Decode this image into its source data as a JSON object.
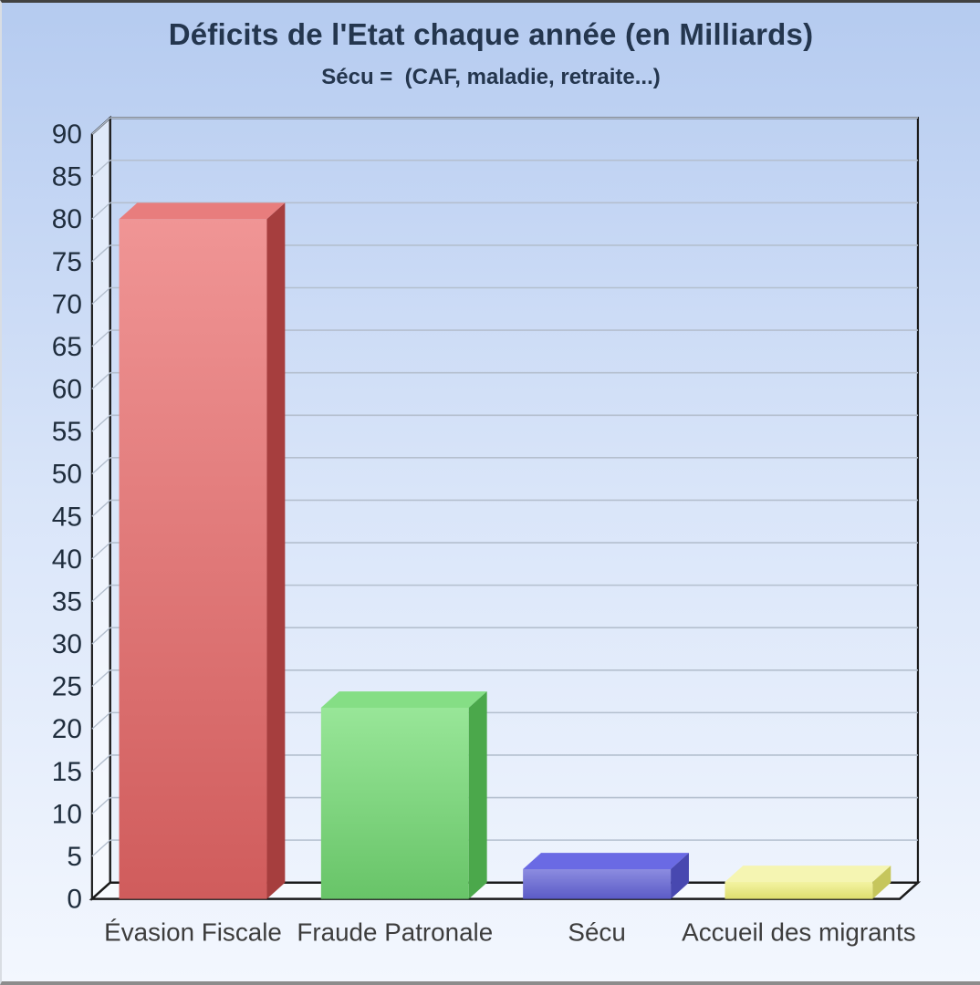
{
  "frame": {
    "border_top": "#414141",
    "border_bottom": "#8c8c8c",
    "border_left": "#d9dde3"
  },
  "background": {
    "top": "#b5cbf0",
    "middle": "#d9e5f9",
    "bottom": "#f3f7fe"
  },
  "chart_data": {
    "type": "bar",
    "projection": "3d",
    "title": "Déficits de l'Etat chaque année (en Milliards)",
    "subtitle": "Sécu =  (CAF, maladie, retraite...)",
    "categories": [
      "Évasion Fiscale",
      "Fraude Patronale",
      "Sécu",
      "Accueil des migrants"
    ],
    "values": [
      80,
      22.5,
      3.5,
      2
    ],
    "ylim": [
      0,
      90
    ],
    "ytick_step": 5,
    "yticks": [
      0,
      5,
      10,
      15,
      20,
      25,
      30,
      35,
      40,
      45,
      50,
      55,
      60,
      65,
      70,
      75,
      80,
      85,
      90
    ],
    "grid": true,
    "legend": false,
    "bar_colors": [
      {
        "name": "red",
        "front_top": "#f09595",
        "front_bottom": "#d05c5c",
        "top": "#e87d7d",
        "side": "#a63e3e"
      },
      {
        "name": "green",
        "front_top": "#98e698",
        "front_bottom": "#68c468",
        "top": "#85de85",
        "side": "#4ba84b"
      },
      {
        "name": "blue",
        "front_top": "#8c8ce0",
        "front_bottom": "#5b5bc6",
        "top": "#6a6ae4",
        "side": "#4848b0"
      },
      {
        "name": "yellow",
        "front_top": "#f3f3a2",
        "front_bottom": "#dede6e",
        "top": "#f5f5b2",
        "side": "#c6c65c"
      }
    ]
  },
  "style_colors": {
    "title": "#24364e",
    "tick_label": "#1f2d3d",
    "category_label": "#3d3d3d",
    "wall_outline": "#1b1b1b",
    "gridline": "#b4bfce",
    "wall_fill": "rgba(255,255,255,0.50)",
    "floor_fill": "rgba(255,255,255,0.55)"
  }
}
